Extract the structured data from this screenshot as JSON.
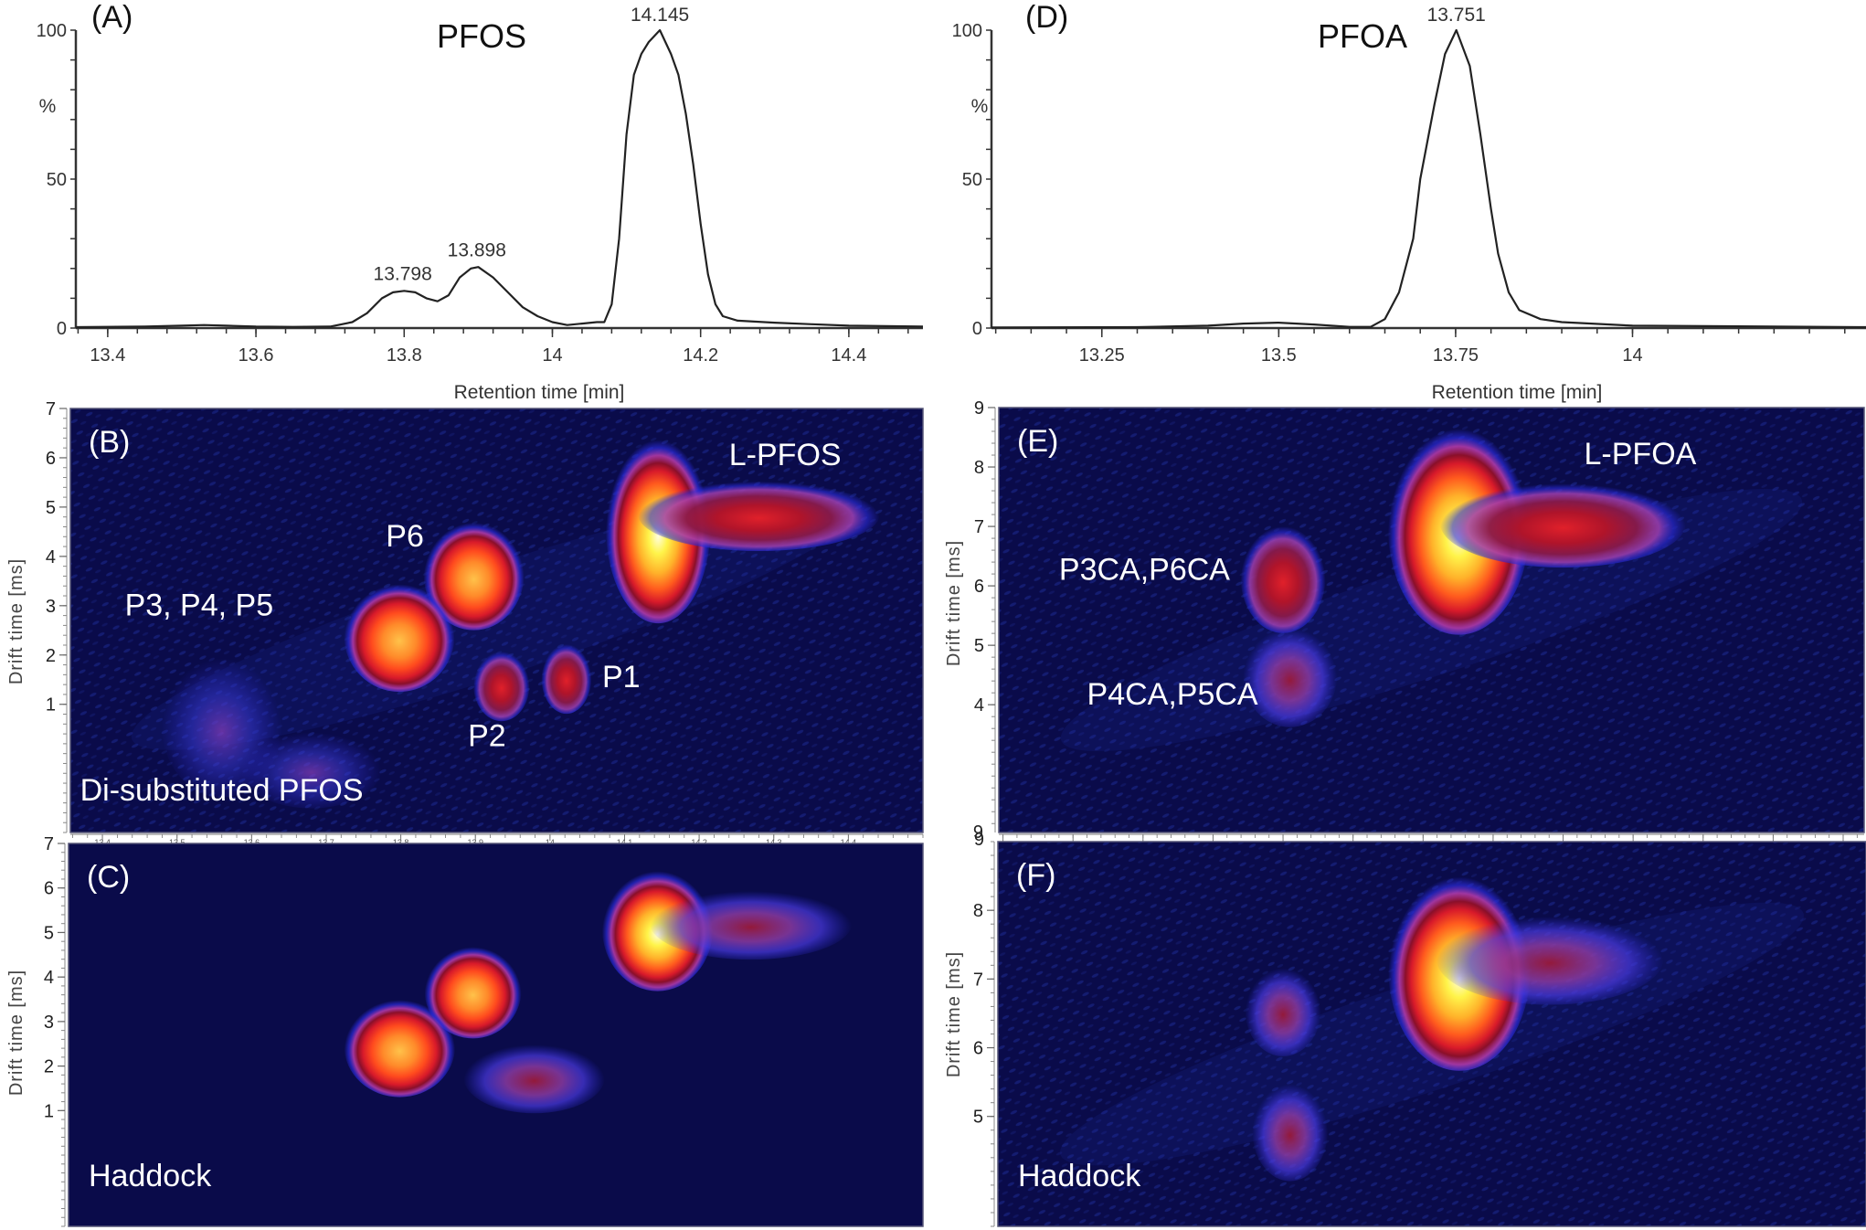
{
  "chart_data": [
    {
      "id": "A",
      "type": "line",
      "panel_label": "(A)",
      "title": "PFOS",
      "xlabel": "Retention time [min]",
      "ylabel": "%",
      "xlim": [
        13.357,
        14.5
      ],
      "ylim": [
        0,
        100
      ],
      "xticks": [
        13.4,
        13.6,
        13.8,
        14,
        14.2,
        14.4
      ],
      "xtick_labels": [
        "13.4",
        "13.6",
        "13.8",
        "14",
        "14.2",
        "14.4"
      ],
      "yticks": [
        0,
        50,
        100
      ],
      "ytick_labels": [
        "0",
        "50",
        "100"
      ],
      "peak_labels": [
        {
          "x": 13.798,
          "y": 13,
          "text": "13.798"
        },
        {
          "x": 13.898,
          "y": 21,
          "text": "13.898"
        },
        {
          "x": 14.145,
          "y": 100,
          "text": "14.145"
        }
      ],
      "series": [
        {
          "name": "PFOS chromatogram",
          "x": [
            13.357,
            13.45,
            13.5,
            13.53,
            13.56,
            13.6,
            13.65,
            13.7,
            13.73,
            13.75,
            13.77,
            13.785,
            13.8,
            13.815,
            13.83,
            13.845,
            13.86,
            13.875,
            13.89,
            13.9,
            13.92,
            13.94,
            13.96,
            13.98,
            14.0,
            14.02,
            14.04,
            14.06,
            14.07,
            14.08,
            14.09,
            14.1,
            14.11,
            14.12,
            14.13,
            14.145,
            14.16,
            14.17,
            14.18,
            14.19,
            14.2,
            14.21,
            14.22,
            14.23,
            14.25,
            14.3,
            14.35,
            14.4,
            14.5
          ],
          "y": [
            0.3,
            0.5,
            0.8,
            1.0,
            0.8,
            0.5,
            0.4,
            0.5,
            2,
            5,
            10,
            12,
            12.5,
            12,
            10,
            9,
            11,
            17,
            20,
            20.5,
            17,
            12,
            7,
            4,
            2,
            1,
            1.5,
            2,
            2,
            8,
            30,
            65,
            85,
            92,
            96,
            100,
            92,
            85,
            72,
            55,
            35,
            18,
            8,
            4,
            2.5,
            1.8,
            1.3,
            0.8,
            0.5
          ]
        }
      ]
    },
    {
      "id": "D",
      "type": "line",
      "panel_label": "(D)",
      "title": "PFOA",
      "xlabel": "Retention time [min]",
      "ylabel": "%",
      "xlim": [
        13.094,
        14.33
      ],
      "ylim": [
        0,
        100
      ],
      "xticks": [
        13.25,
        13.5,
        13.75,
        14
      ],
      "xtick_labels": [
        "13.25",
        "13.5",
        "13.75",
        "14"
      ],
      "yticks": [
        0,
        50,
        100
      ],
      "ytick_labels": [
        "0",
        "50",
        "100"
      ],
      "peak_labels": [
        {
          "x": 13.751,
          "y": 100,
          "text": "13.751"
        }
      ],
      "series": [
        {
          "name": "PFOA chromatogram",
          "x": [
            13.094,
            13.3,
            13.4,
            13.45,
            13.5,
            13.55,
            13.6,
            13.63,
            13.65,
            13.67,
            13.69,
            13.7,
            13.72,
            13.735,
            13.751,
            13.77,
            13.785,
            13.8,
            13.81,
            13.825,
            13.84,
            13.87,
            13.9,
            14.0,
            14.33
          ],
          "y": [
            0.2,
            0.3,
            0.8,
            1.5,
            1.8,
            1.2,
            0.4,
            0.4,
            3,
            12,
            30,
            50,
            75,
            92,
            100,
            88,
            65,
            40,
            25,
            12,
            6,
            3,
            2,
            0.8,
            0.3
          ]
        }
      ]
    },
    {
      "id": "B",
      "type": "heatmap",
      "panel_label": "(B)",
      "xlabel": "Retention time [min]",
      "ylabel": "Drift time [ms]",
      "xlim": [
        13.357,
        14.5
      ],
      "ylim": [
        -1.6,
        7
      ],
      "xticks": [
        13.4,
        13.5,
        13.6,
        13.7,
        13.8,
        13.9,
        14,
        14.1,
        14.2,
        14.3,
        14.4
      ],
      "xtick_labels": [
        "13.4",
        "13.5",
        "13.6",
        "13.7",
        "13.8",
        "13.9",
        "14",
        "14.1",
        "14.2",
        "14.3",
        "14.4"
      ],
      "yticks": [
        1,
        2,
        3,
        4,
        5,
        6,
        7
      ],
      "ytick_labels": [
        "1",
        "2",
        "3",
        "4",
        "5",
        "6",
        "7"
      ],
      "annotations": [
        {
          "text": "L-PFOS",
          "x": 14.24,
          "y": 5.85
        },
        {
          "text": "P6",
          "x": 13.78,
          "y": 4.2
        },
        {
          "text": "P3, P4, P5",
          "x": 13.43,
          "y": 2.8
        },
        {
          "text": "P1",
          "x": 14.07,
          "y": 1.35
        },
        {
          "text": "P2",
          "x": 13.89,
          "y": 0.15
        },
        {
          "text": "Di-substituted PFOS",
          "x": 13.37,
          "y": -0.95
        }
      ],
      "blobs": [
        {
          "name": "L-PFOS",
          "x": 14.145,
          "y": 4.6,
          "rx": 0.052,
          "ry": 1.45,
          "intensity": 1.0
        },
        {
          "name": "L-PFOS tail",
          "x": 14.28,
          "y": 4.85,
          "rx": 0.12,
          "ry": 0.55,
          "intensity": 0.45
        },
        {
          "name": "P6",
          "x": 13.898,
          "y": 3.65,
          "rx": 0.05,
          "ry": 0.85,
          "intensity": 0.75
        },
        {
          "name": "P3, P4, P5",
          "x": 13.798,
          "y": 2.4,
          "rx": 0.055,
          "ry": 0.85,
          "intensity": 0.72
        },
        {
          "name": "P2",
          "x": 13.935,
          "y": 1.4,
          "rx": 0.028,
          "ry": 0.55,
          "intensity": 0.42
        },
        {
          "name": "P1",
          "x": 14.022,
          "y": 1.55,
          "rx": 0.025,
          "ry": 0.55,
          "intensity": 0.42
        },
        {
          "name": "Di-substituted PFOS",
          "x": 13.56,
          "y": 0.6,
          "rx": 0.06,
          "ry": 1.1,
          "intensity": 0.2
        },
        {
          "name": "Di-substituted PFOS 2",
          "x": 13.68,
          "y": -0.3,
          "rx": 0.07,
          "ry": 0.6,
          "intensity": 0.18
        }
      ]
    },
    {
      "id": "C",
      "type": "heatmap",
      "panel_label": "(C)",
      "sample_label": "Haddock",
      "ylabel": "Drift time [ms]",
      "xlim": [
        13.357,
        14.5
      ],
      "ylim": [
        -1.6,
        7
      ],
      "yticks": [
        1,
        2,
        3,
        4,
        5,
        6,
        7
      ],
      "ytick_labels": [
        "1",
        "2",
        "3",
        "4",
        "5",
        "6",
        "7"
      ],
      "blobs": [
        {
          "name": "L-PFOS",
          "x": 14.145,
          "y": 5.1,
          "rx": 0.055,
          "ry": 1.05,
          "intensity": 0.95
        },
        {
          "name": "L-PFOS tail",
          "x": 14.27,
          "y": 5.2,
          "rx": 0.1,
          "ry": 0.6,
          "intensity": 0.38
        },
        {
          "name": "P6",
          "x": 13.898,
          "y": 3.7,
          "rx": 0.048,
          "ry": 0.8,
          "intensity": 0.65
        },
        {
          "name": "P3, P4, P5",
          "x": 13.8,
          "y": 2.45,
          "rx": 0.055,
          "ry": 0.85,
          "intensity": 0.65
        },
        {
          "name": "P1/P2",
          "x": 13.98,
          "y": 1.75,
          "rx": 0.07,
          "ry": 0.6,
          "intensity": 0.35
        }
      ]
    },
    {
      "id": "E",
      "type": "heatmap",
      "panel_label": "(E)",
      "ylabel": "Drift time [ms]",
      "xlim": [
        13.094,
        14.33
      ],
      "ylim": [
        1.85,
        9
      ],
      "yticks": [
        4,
        5,
        6,
        7,
        8,
        9
      ],
      "ytick_labels": [
        "4",
        "5",
        "6",
        "7",
        "8",
        "9"
      ],
      "bottom_tick_label": "9",
      "annotations": [
        {
          "text": "L-PFOA",
          "x": 13.93,
          "y": 8.05
        },
        {
          "text": "P3CA,P6CA",
          "x": 13.18,
          "y": 6.1
        },
        {
          "text": "P4CA,P5CA",
          "x": 13.22,
          "y": 4.0
        }
      ],
      "blobs": [
        {
          "name": "L-PFOA",
          "x": 13.751,
          "y": 7.0,
          "rx": 0.075,
          "ry": 1.35,
          "intensity": 1.0
        },
        {
          "name": "L-PFOA tail",
          "x": 13.9,
          "y": 7.05,
          "rx": 0.13,
          "ry": 0.55,
          "intensity": 0.4
        },
        {
          "name": "P3CA,P6CA",
          "x": 13.5,
          "y": 6.15,
          "rx": 0.045,
          "ry": 0.7,
          "intensity": 0.45
        },
        {
          "name": "P4CA,P5CA",
          "x": 13.51,
          "y": 4.5,
          "rx": 0.05,
          "ry": 0.65,
          "intensity": 0.35
        }
      ]
    },
    {
      "id": "F",
      "type": "heatmap",
      "panel_label": "(F)",
      "sample_label": "Haddock",
      "ylabel": "Drift time [ms]",
      "xlim": [
        13.094,
        14.33
      ],
      "ylim": [
        3.4,
        9
      ],
      "yticks": [
        5,
        6,
        7,
        8
      ],
      "ytick_labels": [
        "5",
        "6",
        "7",
        "8"
      ],
      "top_tick_label": "9",
      "blobs": [
        {
          "name": "L-PFOA",
          "x": 13.751,
          "y": 7.15,
          "rx": 0.075,
          "ry": 1.1,
          "intensity": 1.0
        },
        {
          "name": "L-PFOA tail",
          "x": 13.88,
          "y": 7.3,
          "rx": 0.12,
          "ry": 0.5,
          "intensity": 0.35
        },
        {
          "name": "P3CA,P6CA",
          "x": 13.5,
          "y": 6.55,
          "rx": 0.04,
          "ry": 0.5,
          "intensity": 0.35
        },
        {
          "name": "P4CA,P5CA",
          "x": 13.51,
          "y": 4.8,
          "rx": 0.04,
          "ry": 0.55,
          "intensity": 0.28
        }
      ]
    }
  ],
  "colors": {
    "heatmap_background": "#0a0b4a",
    "heatmap_low": "#2a2ad8",
    "heatmap_mid": "#d81a2a",
    "heatmap_high": "#fff44a",
    "trace": "#222222"
  }
}
